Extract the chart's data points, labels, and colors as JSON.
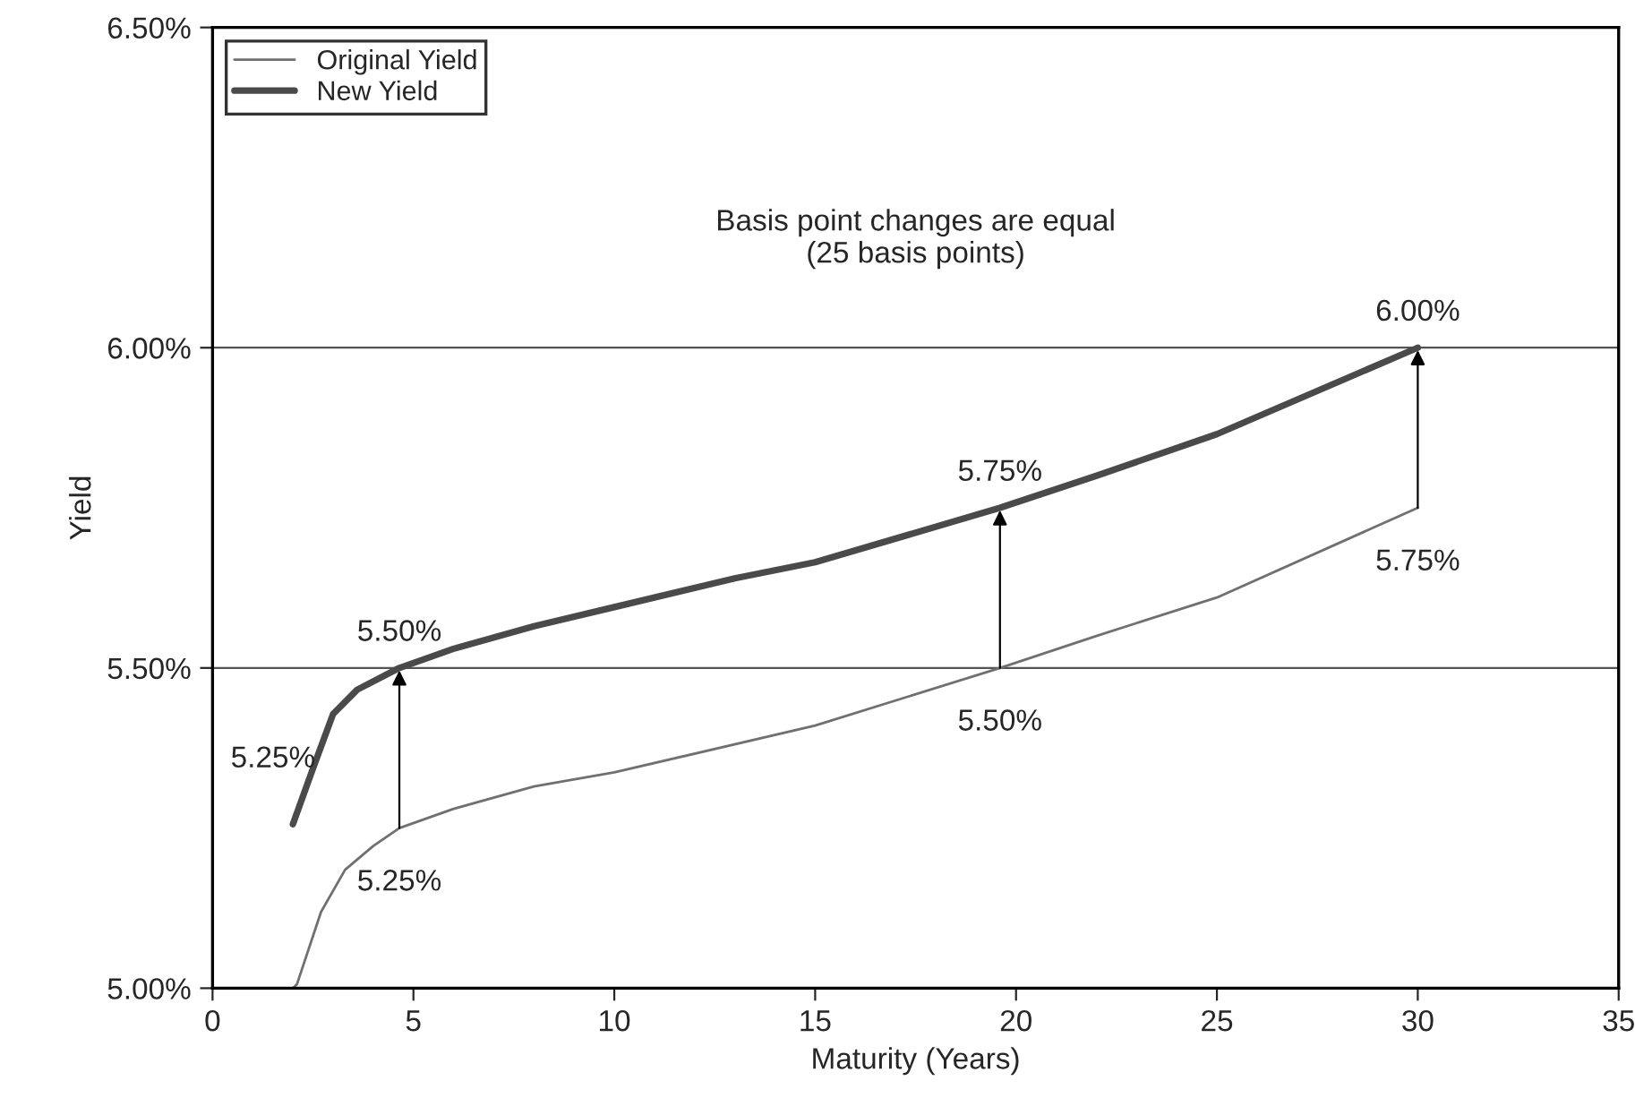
{
  "chart_data": {
    "type": "line",
    "xlabel": "Maturity (Years)",
    "ylabel": "Yield",
    "series": [
      {
        "name": "Original Yield",
        "color": "#707070",
        "x": [
          2.0,
          2.1,
          2.7,
          3.3,
          4.0,
          4.65,
          6,
          8,
          10,
          15,
          19.6,
          22,
          25,
          30
        ],
        "values": [
          5.0,
          5.006,
          5.119,
          5.185,
          5.222,
          5.25,
          5.28,
          5.315,
          5.337,
          5.41,
          5.5,
          5.55,
          5.61,
          5.75
        ]
      },
      {
        "name": "New Yield",
        "color": "#4a4a4a",
        "x": [
          2.0,
          2.5,
          3.0,
          3.6,
          4.65,
          6,
          8,
          10,
          13,
          15,
          19.6,
          22,
          25,
          30
        ],
        "values": [
          5.256,
          5.343,
          5.428,
          5.466,
          5.5,
          5.53,
          5.565,
          5.595,
          5.64,
          5.665,
          5.75,
          5.8,
          5.865,
          6.0
        ]
      }
    ],
    "annotations": [
      {
        "text": "5.25%",
        "x": 4.65,
        "y": 5.25
      },
      {
        "text": "5.50%",
        "x": 4.65,
        "y": 5.5
      },
      {
        "text": "5.50%",
        "x": 19.6,
        "y": 5.5
      },
      {
        "text": "5.75%",
        "x": 19.6,
        "y": 5.75
      },
      {
        "text": "5.75%",
        "x": 30,
        "y": 5.75
      },
      {
        "text": "6.00%",
        "x": 30,
        "y": 6.0
      },
      {
        "text": "5.25%",
        "x": 2.0,
        "y": 5.256
      },
      "Basis point changes are equal\n(25 basis points)"
    ],
    "xlim": [
      0,
      35
    ],
    "xticks": [
      0,
      5,
      10,
      15,
      20,
      25,
      30,
      35
    ],
    "ylim": [
      5.0,
      6.5
    ],
    "yticks": [
      {
        "value": 5.0,
        "label": "5.00%"
      },
      {
        "value": 5.5,
        "label": "5.50%"
      },
      {
        "value": 6.0,
        "label": "6.00%"
      },
      {
        "value": 6.5,
        "label": "6.50%"
      }
    ],
    "grid": "y",
    "legend": "top left",
    "marker": "none",
    "line_style": "solid"
  }
}
